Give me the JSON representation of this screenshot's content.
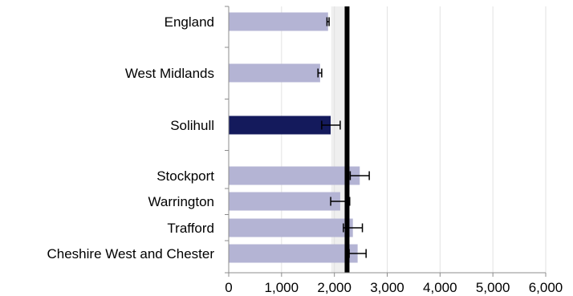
{
  "chart_data": {
    "type": "bar",
    "orientation": "horizontal",
    "title": "",
    "xlabel": "",
    "ylabel": "",
    "categories": [
      "England",
      "West Midlands",
      "Solihull",
      "Stockport",
      "Warrington",
      "Trafford",
      "Cheshire West and Chester"
    ],
    "values": [
      1880,
      1730,
      1930,
      2480,
      2110,
      2350,
      2440
    ],
    "error_low": [
      1860,
      1690,
      1760,
      2300,
      1930,
      2170,
      2280
    ],
    "error_high": [
      1900,
      1760,
      2110,
      2660,
      2290,
      2530,
      2600
    ],
    "highlight_category": "Solihull",
    "reference_line": 2240,
    "reference_band": [
      1940,
      2200
    ],
    "xlim": [
      0,
      6000
    ],
    "xticks": [
      0,
      1000,
      2000,
      3000,
      4000,
      5000,
      6000
    ],
    "xtick_labels": [
      "0",
      "1,000",
      "2,000",
      "3,000",
      "4,000",
      "5,000",
      "6,000"
    ],
    "grid": true,
    "colors": {
      "bar": "#b4b4d4",
      "highlight_bar": "#141a5c",
      "reference_line": "#000000",
      "reference_band": "#efefef",
      "error_bar": "#000000",
      "grid": "#e2e2e2",
      "axis": "#8c8c8c"
    }
  }
}
